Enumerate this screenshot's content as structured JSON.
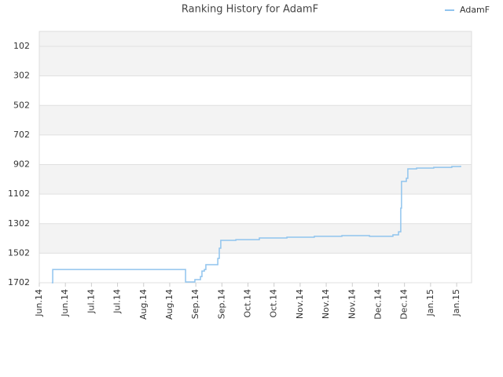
{
  "chart_data": {
    "type": "line",
    "title": "Ranking History for AdamF",
    "x": [
      6.7,
      7.2,
      78.5,
      83.5,
      86.5,
      87.3,
      88.6,
      89.4,
      95.8,
      96.6,
      97.4,
      105.5,
      118.1,
      132.9,
      147.6,
      162.4,
      175.0,
      177.2,
      184.7,
      189.8,
      192.8,
      194.0,
      194.4,
      197.0,
      197.8,
      202.5,
      211.7,
      221.4,
      226.1
    ],
    "series": [
      {
        "name": "AdamF",
        "color": "#90c4ee",
        "values": [
          1702,
          1612,
          1697,
          1681,
          1660,
          1623,
          1612,
          1580,
          1537,
          1468,
          1415,
          1410,
          1399,
          1394,
          1388,
          1383,
          1383,
          1388,
          1388,
          1378,
          1357,
          1197,
          1016,
          995,
          931,
          926,
          921,
          915,
          910
        ]
      }
    ],
    "xlim": [
      0,
      232
    ],
    "xticks": [
      {
        "value": 0,
        "label": "Jun.14"
      },
      {
        "value": 14,
        "label": "Jun.14"
      },
      {
        "value": 28,
        "label": "Jul.14"
      },
      {
        "value": 42,
        "label": "Jul.14"
      },
      {
        "value": 56,
        "label": "Aug.14"
      },
      {
        "value": 70,
        "label": "Aug.14"
      },
      {
        "value": 84,
        "label": "Sep.14"
      },
      {
        "value": 98,
        "label": "Sep.14"
      },
      {
        "value": 112,
        "label": "Oct.14"
      },
      {
        "value": 126,
        "label": "Oct.14"
      },
      {
        "value": 140,
        "label": "Nov.14"
      },
      {
        "value": 154,
        "label": "Nov.14"
      },
      {
        "value": 168,
        "label": "Nov.14"
      },
      {
        "value": 182,
        "label": "Dec.14"
      },
      {
        "value": 196,
        "label": "Dec.14"
      },
      {
        "value": 210,
        "label": "Jan.15"
      },
      {
        "value": 224,
        "label": "Jan.15"
      }
    ],
    "ylim": [
      1702,
      1
    ],
    "yticks": [
      102,
      302,
      502,
      702,
      902,
      1102,
      1302,
      1502,
      1702
    ],
    "grid": true,
    "alternate_bands": true,
    "step": true,
    "legend": "top-right"
  }
}
